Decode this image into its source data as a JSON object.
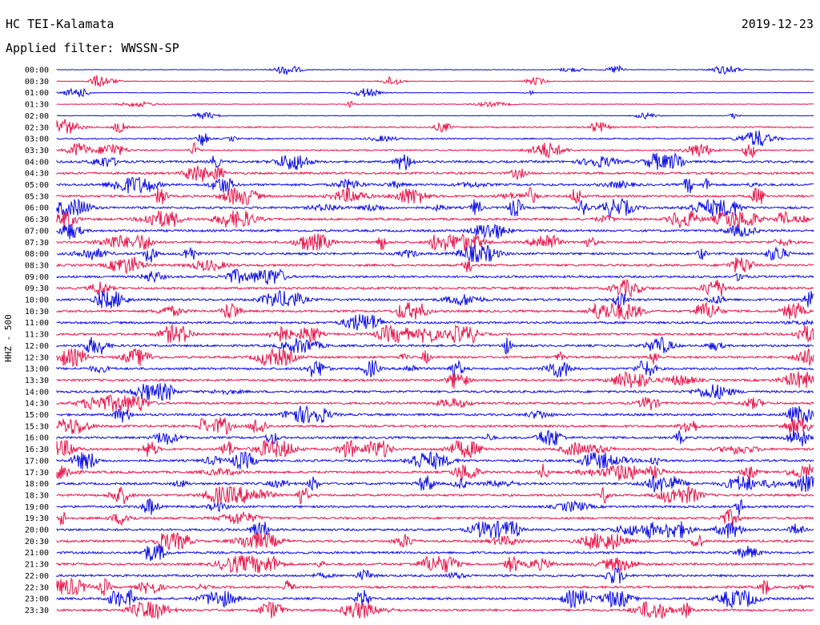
{
  "header": {
    "station": "HC TEI-Kalamata",
    "date": "2019-12-23",
    "filter_label": "Applied filter: WWSSN-SP"
  },
  "channel_label": "HHZ - 500",
  "colors": {
    "even_trace": "#0a0ae6",
    "odd_trace": "#e8144a",
    "background": "#ffffff"
  },
  "time_labels": [
    "00:00",
    "00:30",
    "01:00",
    "01:30",
    "02:00",
    "02:30",
    "03:00",
    "03:30",
    "04:00",
    "04:30",
    "05:00",
    "05:30",
    "06:00",
    "06:30",
    "07:00",
    "07:30",
    "08:00",
    "08:30",
    "09:00",
    "09:30",
    "10:00",
    "10:30",
    "11:00",
    "11:30",
    "12:00",
    "12:30",
    "13:00",
    "13:30",
    "14:00",
    "14:30",
    "15:00",
    "15:30",
    "16:00",
    "16:30",
    "17:00",
    "17:30",
    "18:00",
    "18:30",
    "19:00",
    "19:30",
    "20:00",
    "20:30",
    "21:00",
    "21:30",
    "22:00",
    "22:30",
    "23:00",
    "23:30"
  ]
}
